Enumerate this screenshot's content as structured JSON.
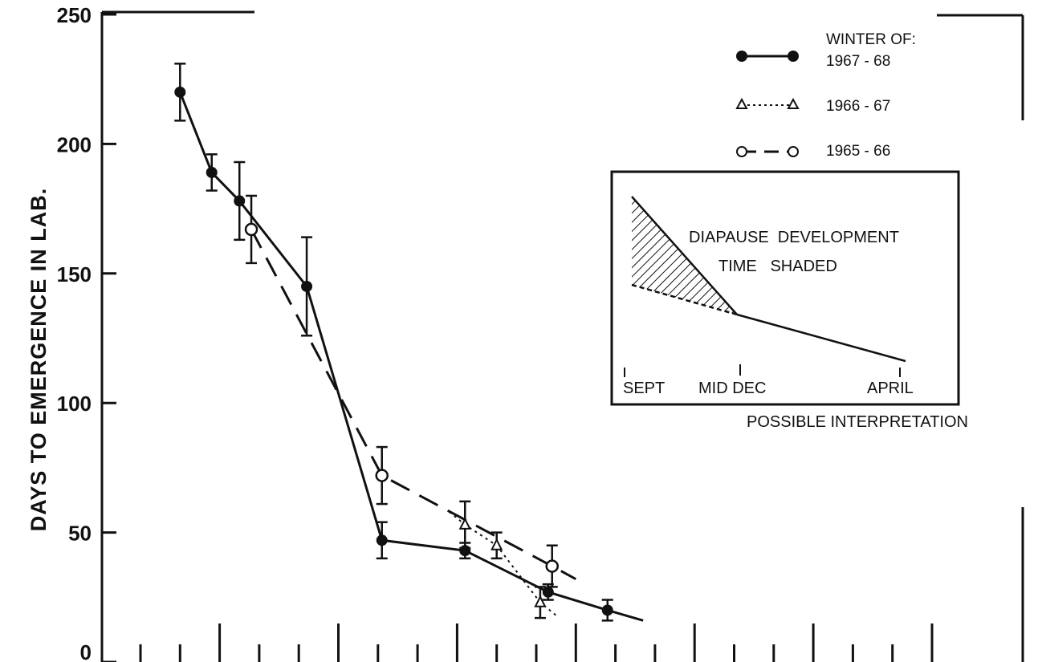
{
  "chart_data": {
    "type": "line",
    "ylabel": "DAYS TO EMERGENCE IN LAB.",
    "xlabel": "",
    "ylim": [
      0,
      250
    ],
    "yticks": [
      "0",
      "50",
      "100",
      "150",
      "200",
      "250"
    ],
    "x_ticks_count": 14,
    "grid": false,
    "legend_title": "WINTER OF:",
    "legend_position": "top-right",
    "series": [
      {
        "name": "1967 - 68",
        "style": "solid",
        "marker": "filled-circle",
        "color": "#111111",
        "points": [
          {
            "x": 1.0,
            "y": 220,
            "err": 11
          },
          {
            "x": 1.8,
            "y": 189,
            "err": 7
          },
          {
            "x": 2.5,
            "y": 178,
            "err": 15
          },
          {
            "x": 4.2,
            "y": 145,
            "err": 19
          },
          {
            "x": 6.1,
            "y": 47,
            "err": 7
          },
          {
            "x": 8.2,
            "y": 43,
            "err": 3
          },
          {
            "x": 10.3,
            "y": 27,
            "err": 3
          },
          {
            "x": 11.8,
            "y": 20,
            "err": 4
          },
          {
            "x": 12.7,
            "y": 16
          }
        ]
      },
      {
        "name": "1966 - 67",
        "style": "dotted",
        "marker": "open-triangle",
        "color": "#111111",
        "points": [
          {
            "x": 7.8,
            "y": 58
          },
          {
            "x": 8.2,
            "y": 53,
            "err": 9
          },
          {
            "x": 9.0,
            "y": 45,
            "err": 5
          },
          {
            "x": 10.1,
            "y": 23,
            "err": 6
          },
          {
            "x": 10.5,
            "y": 18
          }
        ]
      },
      {
        "name": "1965 - 66",
        "style": "dashed",
        "marker": "open-circle",
        "color": "#111111",
        "points": [
          {
            "x": 2.8,
            "y": 167,
            "err": 13
          },
          {
            "x": 6.1,
            "y": 72,
            "err": 11
          },
          {
            "x": 10.4,
            "y": 37,
            "err": 8
          },
          {
            "x": 11.0,
            "y": 32
          }
        ]
      }
    ],
    "inset": {
      "title_line1": "DIAPAUSE  DEVELOPMENT",
      "title_line2": "TIME   SHADED",
      "ticks": [
        "SEPT",
        "MID DEC",
        "APRIL"
      ],
      "caption": "POSSIBLE INTERPRETATION"
    }
  }
}
